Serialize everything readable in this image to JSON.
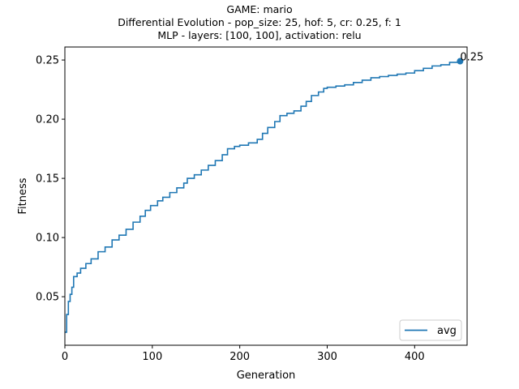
{
  "chart_data": {
    "type": "line",
    "title_lines": [
      "GAME: mario",
      "Differential Evolution - pop_size: 25, hof: 5, cr: 0.25, f: 1",
      "MLP - layers: [100, 100], activation: relu"
    ],
    "xlabel": "Generation",
    "ylabel": "Fitness",
    "xlim": [
      0,
      460
    ],
    "ylim": [
      0.009,
      0.261
    ],
    "xticks": [
      0,
      100,
      200,
      300,
      400
    ],
    "yticks": [
      0.05,
      0.1,
      0.15,
      0.2,
      0.25
    ],
    "ytick_labels": [
      "0.05",
      "0.10",
      "0.15",
      "0.20",
      "0.25"
    ],
    "grid": false,
    "legend_position": "lower right",
    "series": [
      {
        "name": "avg",
        "color": "#1f77b4",
        "x": [
          0,
          2,
          4,
          6,
          8,
          10,
          14,
          18,
          24,
          30,
          38,
          46,
          54,
          62,
          70,
          78,
          86,
          92,
          98,
          106,
          112,
          120,
          128,
          136,
          140,
          148,
          156,
          164,
          172,
          180,
          186,
          194,
          200,
          210,
          220,
          226,
          232,
          240,
          246,
          254,
          262,
          270,
          276,
          282,
          290,
          296,
          300,
          310,
          320,
          330,
          340,
          350,
          360,
          370,
          380,
          390,
          400,
          410,
          420,
          430,
          440,
          452
        ],
        "y": [
          0.02,
          0.035,
          0.046,
          0.052,
          0.058,
          0.067,
          0.07,
          0.074,
          0.078,
          0.082,
          0.088,
          0.092,
          0.098,
          0.102,
          0.107,
          0.113,
          0.118,
          0.123,
          0.127,
          0.131,
          0.134,
          0.138,
          0.142,
          0.146,
          0.15,
          0.153,
          0.157,
          0.161,
          0.165,
          0.17,
          0.175,
          0.177,
          0.178,
          0.18,
          0.183,
          0.188,
          0.193,
          0.198,
          0.203,
          0.205,
          0.207,
          0.211,
          0.215,
          0.22,
          0.223,
          0.226,
          0.227,
          0.228,
          0.229,
          0.231,
          0.233,
          0.235,
          0.236,
          0.237,
          0.238,
          0.239,
          0.241,
          0.243,
          0.245,
          0.246,
          0.248,
          0.249
        ]
      }
    ],
    "annotations": [
      {
        "x": 452,
        "y": 0.249,
        "text": "0.25"
      }
    ]
  }
}
